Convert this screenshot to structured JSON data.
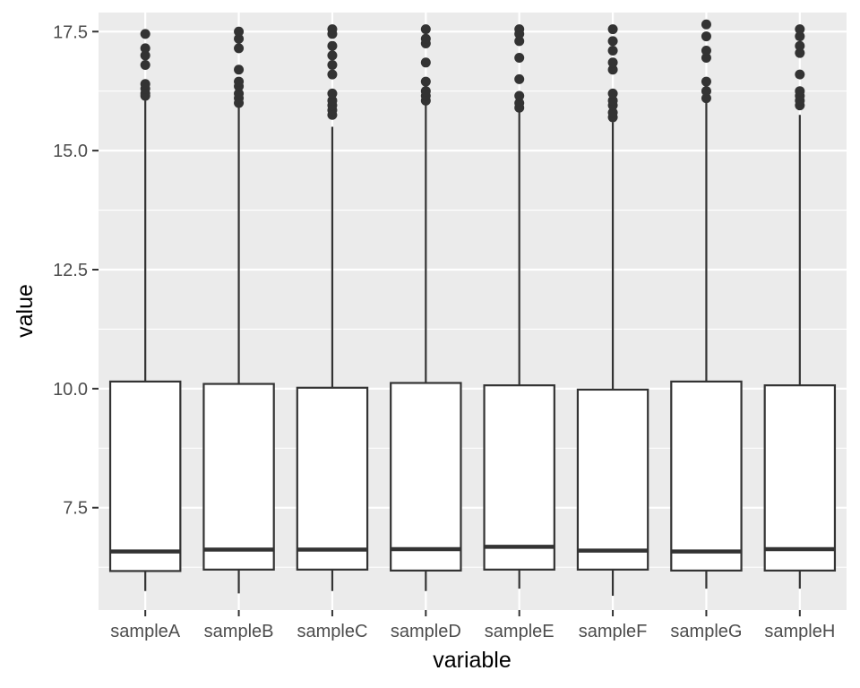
{
  "chart_data": {
    "type": "boxplot",
    "title": "",
    "xlabel": "variable",
    "ylabel": "value",
    "ylim": [
      5.35,
      17.9
    ],
    "yticks": [
      7.5,
      10.0,
      12.5,
      15.0,
      17.5
    ],
    "ytick_labels": [
      "7.5",
      "10.0",
      "12.5",
      "15.0",
      "17.5"
    ],
    "grid": true,
    "colors": {
      "panel": "#ebebeb",
      "grid": "#ffffff",
      "box_fill": "#ffffff",
      "box_stroke": "#333333",
      "text": "#4d4d4d"
    },
    "categories": [
      "sampleA",
      "sampleB",
      "sampleC",
      "sampleD",
      "sampleE",
      "sampleF",
      "sampleG",
      "sampleH"
    ],
    "boxes": [
      {
        "category": "sampleA",
        "whisker_low": 5.75,
        "q1": 6.17,
        "median": 6.58,
        "q3": 10.15,
        "whisker_high": 16.05,
        "outliers": [
          16.15,
          16.2,
          16.3,
          16.4,
          16.8,
          17.0,
          17.15,
          17.45
        ]
      },
      {
        "category": "sampleB",
        "whisker_low": 5.7,
        "q1": 6.2,
        "median": 6.62,
        "q3": 10.1,
        "whisker_high": 15.95,
        "outliers": [
          16.0,
          16.1,
          16.2,
          16.35,
          16.45,
          16.7,
          17.15,
          17.35,
          17.5
        ]
      },
      {
        "category": "sampleC",
        "whisker_low": 5.75,
        "q1": 6.2,
        "median": 6.62,
        "q3": 10.02,
        "whisker_high": 15.5,
        "outliers": [
          15.75,
          15.85,
          15.95,
          16.05,
          16.2,
          16.6,
          16.8,
          17.0,
          17.2,
          17.45,
          17.55
        ]
      },
      {
        "category": "sampleD",
        "whisker_low": 5.75,
        "q1": 6.18,
        "median": 6.63,
        "q3": 10.12,
        "whisker_high": 16.0,
        "outliers": [
          16.05,
          16.15,
          16.25,
          16.45,
          16.85,
          17.25,
          17.35,
          17.55
        ]
      },
      {
        "category": "sampleE",
        "whisker_low": 5.8,
        "q1": 6.2,
        "median": 6.68,
        "q3": 10.07,
        "whisker_high": 15.85,
        "outliers": [
          15.9,
          16.0,
          16.15,
          16.5,
          16.95,
          17.3,
          17.45,
          17.55
        ]
      },
      {
        "category": "sampleF",
        "whisker_low": 5.65,
        "q1": 6.2,
        "median": 6.6,
        "q3": 9.98,
        "whisker_high": 15.6,
        "outliers": [
          15.7,
          15.8,
          15.95,
          16.05,
          16.2,
          16.7,
          16.85,
          17.1,
          17.3,
          17.55
        ]
      },
      {
        "category": "sampleG",
        "whisker_low": 5.8,
        "q1": 6.18,
        "median": 6.58,
        "q3": 10.15,
        "whisker_high": 16.05,
        "outliers": [
          16.1,
          16.25,
          16.45,
          16.95,
          17.1,
          17.4,
          17.65
        ]
      },
      {
        "category": "sampleH",
        "whisker_low": 5.8,
        "q1": 6.18,
        "median": 6.63,
        "q3": 10.07,
        "whisker_high": 15.75,
        "outliers": [
          15.95,
          16.05,
          16.15,
          16.25,
          16.6,
          17.05,
          17.2,
          17.4,
          17.55
        ]
      }
    ]
  }
}
